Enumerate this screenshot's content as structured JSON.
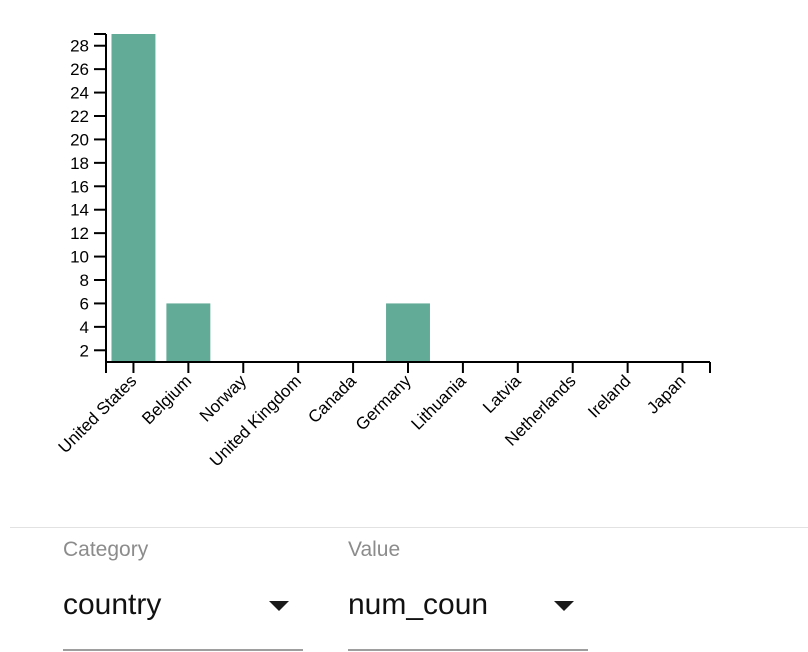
{
  "chart_data": {
    "type": "bar",
    "categories": [
      "United States",
      "Belgium",
      "Norway",
      "United Kingdom",
      "Canada",
      "Germany",
      "Lithuania",
      "Latvia",
      "Netherlands",
      "Ireland",
      "Japan"
    ],
    "values": [
      29,
      6,
      0,
      0,
      0,
      6,
      0,
      0,
      0,
      0,
      0
    ],
    "yticks": [
      "2",
      "4",
      "6",
      "8",
      "10",
      "12",
      "14",
      "16",
      "18",
      "20",
      "22",
      "24",
      "26",
      "28"
    ],
    "ylim": [
      1,
      29
    ],
    "title": "",
    "xlabel": "",
    "ylabel": "",
    "grid": false,
    "bar_color": "#62ab96",
    "axis_color": "#000000"
  },
  "controls": {
    "category": {
      "label": "Category",
      "value": "country"
    },
    "value": {
      "label": "Value",
      "value": "num_coun"
    },
    "dropdown_icon": "triangle-down-icon"
  }
}
